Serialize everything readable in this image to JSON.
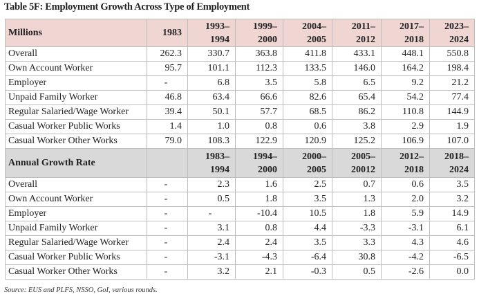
{
  "title": "Table 5F: Employment Growth Across Type of Employment",
  "millions": {
    "header": [
      "Millions",
      "1983",
      "1993–\n1994",
      "1999–\n2000",
      "2004–\n2005",
      "2011–\n2012",
      "2017–\n2018",
      "2023–\n2024"
    ],
    "rows": [
      [
        "Overall",
        "262.3",
        "330.7",
        "363.8",
        "411.8",
        "433.1",
        "448.1",
        "550.8"
      ],
      [
        "Own Account Worker",
        "95.7",
        "101.1",
        "112.3",
        "133.5",
        "146.0",
        "164.2",
        "198.4"
      ],
      [
        "Employer",
        "-",
        "6.8",
        "3.5",
        "5.8",
        "6.5",
        "9.2",
        "21.2"
      ],
      [
        "Unpaid Family Worker",
        "46.8",
        "63.4",
        "66.6",
        "82.6",
        "65.4",
        "54.2",
        "77.4"
      ],
      [
        "Regular Salaried/Wage Worker",
        "39.4",
        "50.1",
        "57.7",
        "68.5",
        "86.2",
        "110.8",
        "144.9"
      ],
      [
        "Casual Worker Public Works",
        "1.4",
        "1.0",
        "0.8",
        "0.6",
        "3.8",
        "2.9",
        "1.9"
      ],
      [
        "Casual Worker Other Works",
        "79.0",
        "108.3",
        "122.9",
        "120.9",
        "125.2",
        "106.9",
        "107.0"
      ]
    ]
  },
  "growth": {
    "header": [
      "Annual Growth Rate",
      "",
      "1983–\n1994",
      "1994–\n2000",
      "2000–\n2005",
      "2005–\n20012",
      "2012–\n2018",
      "2018–\n2024"
    ],
    "rows": [
      [
        "Overall",
        "-",
        "2.3",
        "1.6",
        "2.5",
        "0.7",
        "0.6",
        "3.5"
      ],
      [
        "Own Account Worker",
        "-",
        "0.5",
        "1.8",
        "3.5",
        "1.3",
        "2.0",
        "3.2"
      ],
      [
        "Employer",
        "-",
        "-",
        "-10.4",
        "10.5",
        "1.8",
        "5.9",
        "14.9"
      ],
      [
        "Unpaid Family Worker",
        "-",
        "3.1",
        "0.8",
        "4.4",
        "-3.3",
        "-3.1",
        "6.1"
      ],
      [
        "Regular Salaried/Wage Worker",
        "-",
        "2.4",
        "2.4",
        "3.5",
        "3.3",
        "4.3",
        "4.6"
      ],
      [
        "Casual Worker Public Works",
        "-",
        "-3.1",
        "-4.3",
        "-6.4",
        "30.8",
        "-4.2",
        "-6.5"
      ],
      [
        "Casual Worker Other Works",
        "-",
        "3.2",
        "2.1",
        "-0.3",
        "0.5",
        "-2.6",
        "0.0"
      ]
    ]
  },
  "source": "Source: EUS and PLFS, NSSO, GoI, various rounds."
}
